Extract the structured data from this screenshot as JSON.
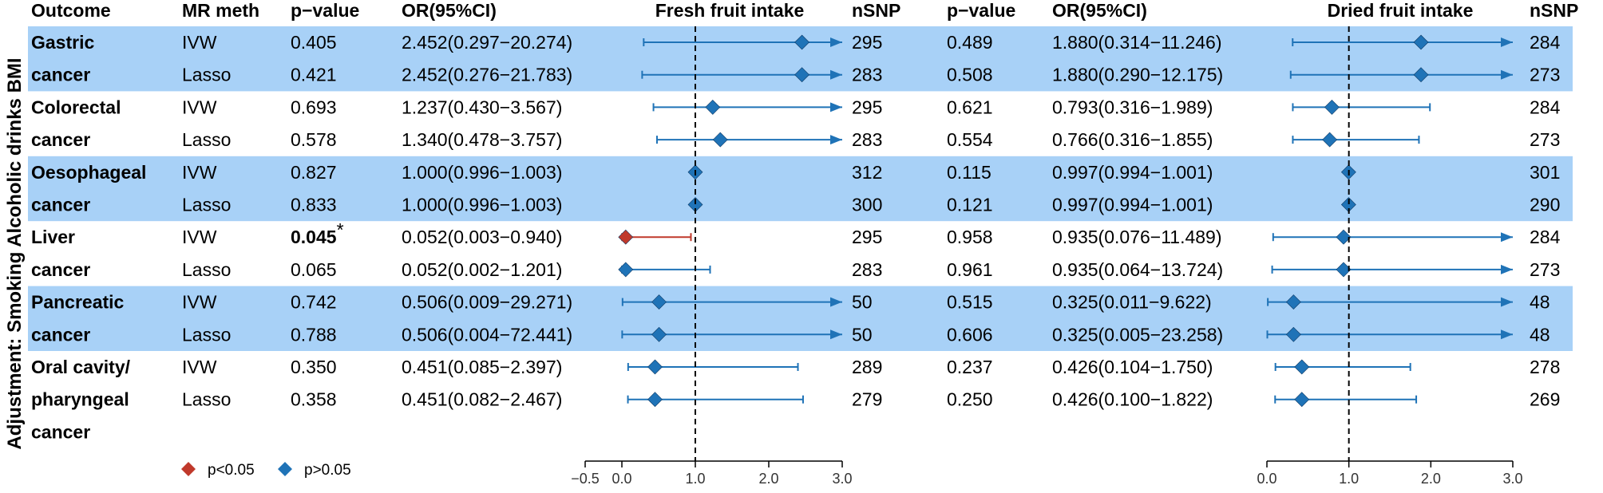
{
  "chart_data": {
    "type": "forest",
    "headers": {
      "outcome": "Outcome",
      "method": "MR meth",
      "pvalue": "p−value",
      "or": "OR(95%CI)",
      "fresh_title": "Fresh fruit intake",
      "nsnp": "nSNP",
      "pvalue2": "p−value",
      "or2": "OR(95%CI)",
      "dried_title": "Dried fruit intake",
      "nsnp2": "nSNP"
    },
    "side_label": "Adjustment: Smoking Alcoholic drinks BMI",
    "reference_line": 1.0,
    "fresh_axis": {
      "min": -0.5,
      "max": 3.0,
      "ticks": [
        "−0.5",
        "0.0",
        "1.0",
        "2.0",
        "3.0"
      ],
      "tick_values": [
        -0.5,
        0,
        1,
        2,
        3
      ]
    },
    "dried_axis": {
      "min": 0.0,
      "max": 3.0,
      "ticks": [
        "0.0",
        "1.0",
        "2.0",
        "3.0"
      ],
      "tick_values": [
        0,
        1,
        2,
        3
      ]
    },
    "outcomes": [
      {
        "lines": [
          "Gastric",
          "cancer"
        ],
        "shaded": true
      },
      {
        "lines": [
          "Colorectal",
          "cancer"
        ],
        "shaded": false
      },
      {
        "lines": [
          "Oesophageal",
          "cancer"
        ],
        "shaded": true
      },
      {
        "lines": [
          "Liver",
          "cancer"
        ],
        "shaded": false
      },
      {
        "lines": [
          "Pancreatic",
          "cancer"
        ],
        "shaded": true
      },
      {
        "lines": [
          "Oral cavity/",
          "pharyngeal",
          "cancer"
        ],
        "shaded": false
      }
    ],
    "rows": [
      {
        "method": "IVW",
        "fresh": {
          "p": "0.405",
          "sig": false,
          "ci": "2.452(0.297−20.274)",
          "or": 2.452,
          "lo": 0.297,
          "hi": 20.274,
          "nsnp": "295"
        },
        "dried": {
          "p": "0.489",
          "ci": "1.880(0.314−11.246)",
          "or": 1.88,
          "lo": 0.314,
          "hi": 11.246,
          "nsnp": "284"
        }
      },
      {
        "method": "Lasso",
        "fresh": {
          "p": "0.421",
          "sig": false,
          "ci": "2.452(0.276−21.783)",
          "or": 2.452,
          "lo": 0.276,
          "hi": 21.783,
          "nsnp": "283"
        },
        "dried": {
          "p": "0.508",
          "ci": "1.880(0.290−12.175)",
          "or": 1.88,
          "lo": 0.29,
          "hi": 12.175,
          "nsnp": "273"
        }
      },
      {
        "method": "IVW",
        "fresh": {
          "p": "0.693",
          "sig": false,
          "ci": "1.237(0.430−3.567)",
          "or": 1.237,
          "lo": 0.43,
          "hi": 3.567,
          "nsnp": "295"
        },
        "dried": {
          "p": "0.621",
          "ci": "0.793(0.316−1.989)",
          "or": 0.793,
          "lo": 0.316,
          "hi": 1.989,
          "nsnp": "284"
        }
      },
      {
        "method": "Lasso",
        "fresh": {
          "p": "0.578",
          "sig": false,
          "ci": "1.340(0.478−3.757)",
          "or": 1.34,
          "lo": 0.478,
          "hi": 3.757,
          "nsnp": "283"
        },
        "dried": {
          "p": "0.554",
          "ci": "0.766(0.316−1.855)",
          "or": 0.766,
          "lo": 0.316,
          "hi": 1.855,
          "nsnp": "273"
        }
      },
      {
        "method": "IVW",
        "fresh": {
          "p": "0.827",
          "sig": false,
          "ci": "1.000(0.996−1.003)",
          "or": 1.0,
          "lo": 0.996,
          "hi": 1.003,
          "nsnp": "312"
        },
        "dried": {
          "p": "0.115",
          "ci": "0.997(0.994−1.001)",
          "or": 0.997,
          "lo": 0.994,
          "hi": 1.001,
          "nsnp": "301"
        }
      },
      {
        "method": "Lasso",
        "fresh": {
          "p": "0.833",
          "sig": false,
          "ci": "1.000(0.996−1.003)",
          "or": 1.0,
          "lo": 0.996,
          "hi": 1.003,
          "nsnp": "300"
        },
        "dried": {
          "p": "0.121",
          "ci": "0.997(0.994−1.001)",
          "or": 0.997,
          "lo": 0.994,
          "hi": 1.001,
          "nsnp": "290"
        }
      },
      {
        "method": "IVW",
        "fresh": {
          "p": "0.045",
          "sig": true,
          "star": "*",
          "ci": "0.052(0.003−0.940)",
          "or": 0.052,
          "lo": 0.003,
          "hi": 0.94,
          "nsnp": "295"
        },
        "dried": {
          "p": "0.958",
          "ci": "0.935(0.076−11.489)",
          "or": 0.935,
          "lo": 0.076,
          "hi": 11.489,
          "nsnp": "284"
        }
      },
      {
        "method": "Lasso",
        "fresh": {
          "p": "0.065",
          "sig": false,
          "ci": "0.052(0.002−1.201)",
          "or": 0.052,
          "lo": 0.002,
          "hi": 1.201,
          "nsnp": "283"
        },
        "dried": {
          "p": "0.961",
          "ci": "0.935(0.064−13.724)",
          "or": 0.935,
          "lo": 0.064,
          "hi": 13.724,
          "nsnp": "273"
        }
      },
      {
        "method": "IVW",
        "fresh": {
          "p": "0.742",
          "sig": false,
          "ci": "0.506(0.009−29.271)",
          "or": 0.506,
          "lo": 0.009,
          "hi": 29.271,
          "nsnp": "50"
        },
        "dried": {
          "p": "0.515",
          "ci": "0.325(0.011−9.622)",
          "or": 0.325,
          "lo": 0.011,
          "hi": 9.622,
          "nsnp": "48"
        }
      },
      {
        "method": "Lasso",
        "fresh": {
          "p": "0.788",
          "sig": false,
          "ci": "0.506(0.004−72.441)",
          "or": 0.506,
          "lo": 0.004,
          "hi": 72.441,
          "nsnp": "50"
        },
        "dried": {
          "p": "0.606",
          "ci": "0.325(0.005−23.258)",
          "or": 0.325,
          "lo": 0.005,
          "hi": 23.258,
          "nsnp": "48"
        }
      },
      {
        "method": "IVW",
        "fresh": {
          "p": "0.350",
          "sig": false,
          "ci": "0.451(0.085−2.397)",
          "or": 0.451,
          "lo": 0.085,
          "hi": 2.397,
          "nsnp": "289"
        },
        "dried": {
          "p": "0.237",
          "ci": "0.426(0.104−1.750)",
          "or": 0.426,
          "lo": 0.104,
          "hi": 1.75,
          "nsnp": "278"
        }
      },
      {
        "method": "Lasso",
        "fresh": {
          "p": "0.358",
          "sig": false,
          "ci": "0.451(0.082−2.467)",
          "or": 0.451,
          "lo": 0.082,
          "hi": 2.467,
          "nsnp": "279"
        },
        "dried": {
          "p": "0.250",
          "ci": "0.426(0.100−1.822)",
          "or": 0.426,
          "lo": 0.1,
          "hi": 1.822,
          "nsnp": "269"
        }
      }
    ],
    "legend": [
      {
        "label": "p<0.05",
        "color": "#c0392b"
      },
      {
        "label": "p>0.05",
        "color": "#1f73b7"
      }
    ],
    "colors": {
      "significant": "#c0392b",
      "nonsignificant": "#1f73b7",
      "band": "#a8d1f7"
    }
  }
}
